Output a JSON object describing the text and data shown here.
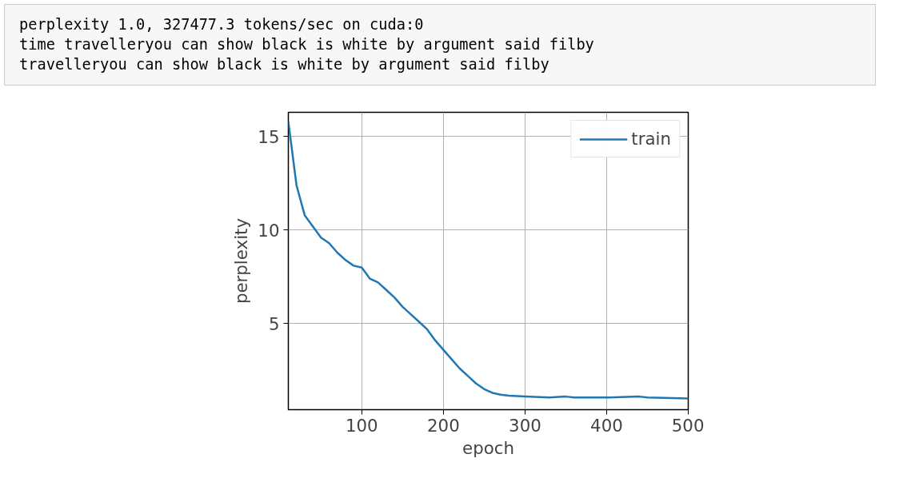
{
  "chart_data": {
    "type": "line",
    "xlabel": "epoch",
    "ylabel": "perplexity",
    "annotations": [
      "perplexity 1.0, 327477.3 tokens/sec on cuda:0",
      "time travelleryou can show black is white by argument said filby",
      "travelleryou can show black is white by argument said filby"
    ],
    "x": [
      10,
      20,
      30,
      40,
      50,
      60,
      70,
      80,
      90,
      100,
      110,
      120,
      130,
      140,
      150,
      160,
      170,
      180,
      190,
      200,
      210,
      220,
      230,
      240,
      250,
      260,
      270,
      280,
      300,
      330,
      350,
      360,
      400,
      440,
      450,
      500
    ],
    "series": [
      {
        "name": "train",
        "color": "#1f77b4",
        "values": [
          15.8,
          12.4,
          10.8,
          10.2,
          9.6,
          9.3,
          8.8,
          8.4,
          8.1,
          8.0,
          7.4,
          7.2,
          6.8,
          6.4,
          5.9,
          5.5,
          5.1,
          4.7,
          4.1,
          3.6,
          3.1,
          2.6,
          2.2,
          1.8,
          1.5,
          1.3,
          1.2,
          1.15,
          1.1,
          1.05,
          1.1,
          1.05,
          1.05,
          1.1,
          1.05,
          1.0
        ]
      }
    ],
    "xlim": [
      10,
      500
    ],
    "ylim": [
      0.4,
      16.3
    ],
    "xticks": [
      100,
      200,
      300,
      400,
      500
    ],
    "yticks": [
      5,
      10,
      15
    ],
    "grid": true,
    "legend": "top right",
    "line_style": "solid"
  }
}
